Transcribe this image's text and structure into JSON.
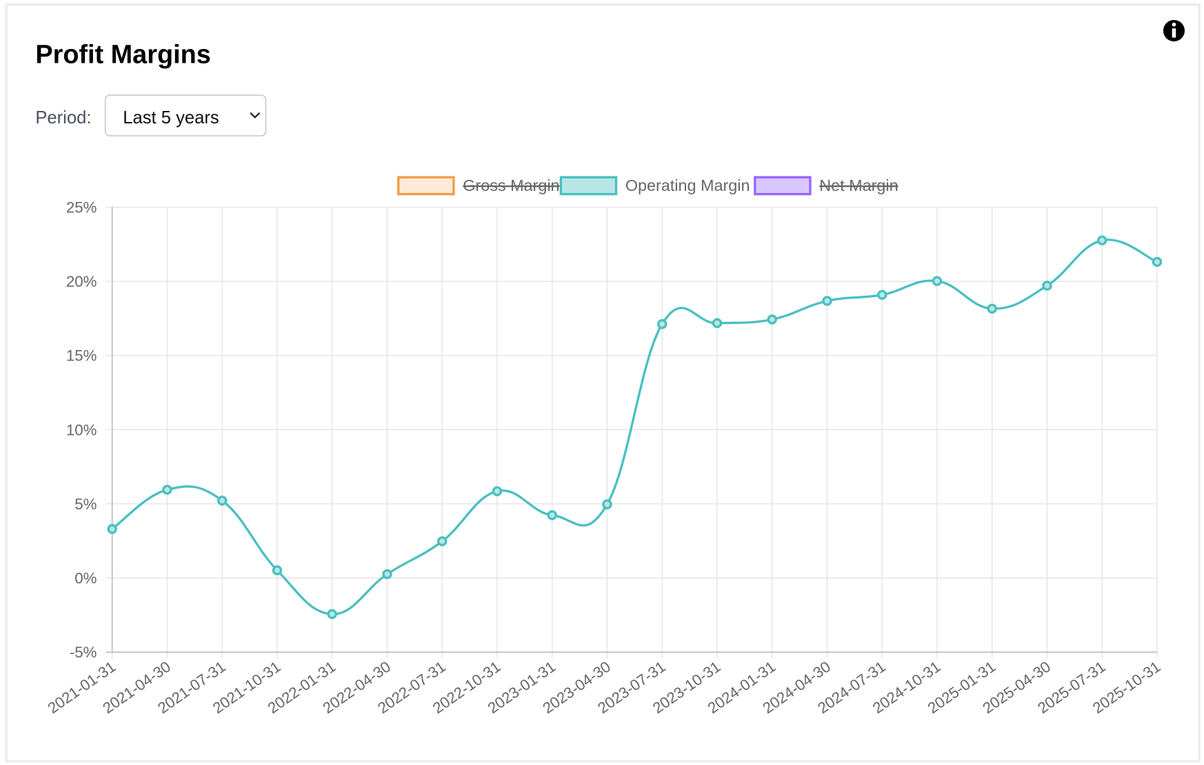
{
  "header": {
    "title": "Profit Margins"
  },
  "controls": {
    "period_label": "Period:",
    "period_value": "Last 5 years"
  },
  "chart_data": {
    "type": "line",
    "categories": [
      "2021-01-31",
      "2021-04-30",
      "2021-07-31",
      "2021-10-31",
      "2022-01-31",
      "2022-04-30",
      "2022-07-31",
      "2022-10-31",
      "2023-01-31",
      "2023-04-30",
      "2023-07-31",
      "2023-10-31",
      "2024-01-31",
      "2024-04-30",
      "2024-07-31",
      "2024-10-31",
      "2025-01-31",
      "2025-04-30",
      "2025-07-31",
      "2025-10-31"
    ],
    "series": [
      {
        "name": "Gross Margin",
        "color": "#f39c45",
        "fill": "#fdebd8",
        "hidden": true
      },
      {
        "name": "Operating Margin",
        "color": "#4bbfbf",
        "fill": "#b8e6e6",
        "values": [
          3.31,
          5.95,
          5.22,
          0.52,
          -2.43,
          0.26,
          2.48,
          5.85,
          4.24,
          4.97,
          17.12,
          17.18,
          17.43,
          18.68,
          19.09,
          20.02,
          18.16,
          19.71,
          22.76,
          21.31
        ]
      },
      {
        "name": "Net Margin",
        "color": "#9966ff",
        "fill": "#d9c8ff",
        "hidden": true
      }
    ],
    "ylim": [
      -5,
      25
    ],
    "yticks": [
      {
        "value": -5,
        "label": "-5%"
      },
      {
        "value": 0,
        "label": "0%"
      },
      {
        "value": 5,
        "label": "5%"
      },
      {
        "value": 10,
        "label": "10%"
      },
      {
        "value": 15,
        "label": "15%"
      },
      {
        "value": 20,
        "label": "20%"
      },
      {
        "value": 25,
        "label": "25%"
      }
    ],
    "grid": true,
    "legend": "top"
  }
}
